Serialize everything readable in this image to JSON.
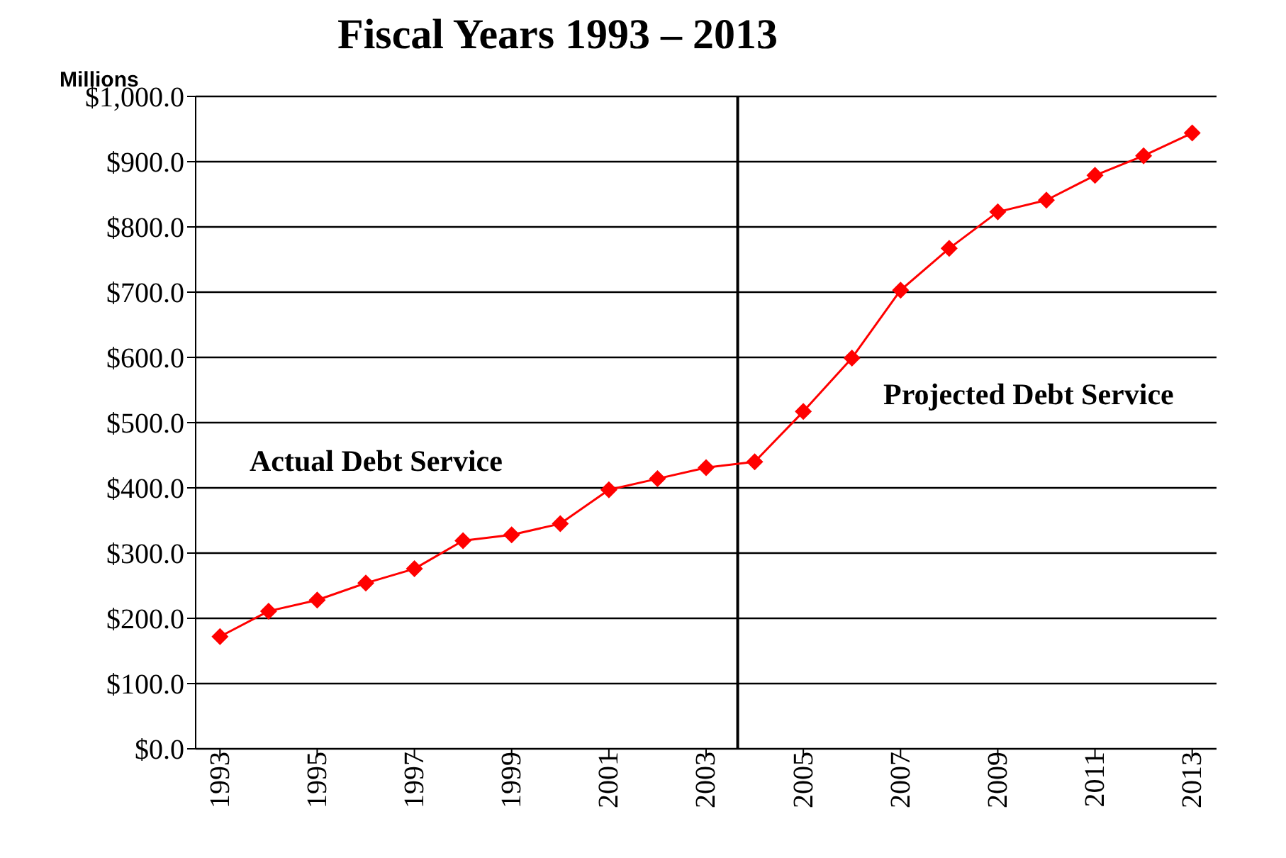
{
  "chart_data": {
    "type": "line",
    "title": "Fiscal Years 1993 – 2013",
    "ylabel": "Millions",
    "x": [
      1993,
      1994,
      1995,
      1996,
      1997,
      1998,
      1999,
      2000,
      2001,
      2002,
      2003,
      2004,
      2005,
      2006,
      2007,
      2008,
      2009,
      2010,
      2011,
      2012,
      2013
    ],
    "series": [
      {
        "color": "#ff0000",
        "values": [
          172,
          211,
          228,
          254,
          276,
          319,
          328,
          345,
          397,
          414,
          431,
          440,
          517,
          599,
          703,
          767,
          823,
          841,
          879,
          909,
          944
        ]
      }
    ],
    "xlim": [
      1992.5,
      2013.5
    ],
    "xticks": [
      1993,
      1995,
      1997,
      1999,
      2001,
      2003,
      2005,
      2007,
      2009,
      2011,
      2013
    ],
    "ylim": [
      0,
      1000
    ],
    "yticks": [
      {
        "value": 0,
        "label": "$0.0"
      },
      {
        "value": 100,
        "label": "$100.0"
      },
      {
        "value": 200,
        "label": "$200.0"
      },
      {
        "value": 300,
        "label": "$300.0"
      },
      {
        "value": 400,
        "label": "$400.0"
      },
      {
        "value": 500,
        "label": "$500.0"
      },
      {
        "value": 600,
        "label": "$600.0"
      },
      {
        "value": 700,
        "label": "$700.0"
      },
      {
        "value": 800,
        "label": "$800.0"
      },
      {
        "value": 900,
        "label": "$900.0"
      },
      {
        "value": 1000,
        "label": "$1,000.0"
      }
    ],
    "ref_lines": [
      {
        "axis": "x",
        "value": 2003.65,
        "color": "#000000"
      }
    ],
    "annotations": [
      "Actual Debt Service",
      "Projected Debt Service"
    ],
    "grid": "y",
    "marker": "diamond",
    "line_style": "solid"
  }
}
